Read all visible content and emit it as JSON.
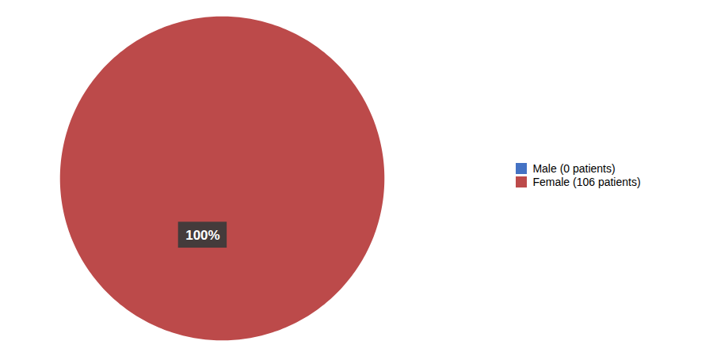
{
  "chart_data": {
    "type": "pie",
    "categories": [
      "Male (0 patients)",
      "Female (106 patients)"
    ],
    "values": [
      1e-06,
      100
    ],
    "colors": [
      "#4472c4",
      "#bc4a4a"
    ],
    "annotations": [
      "100%"
    ],
    "legend": "right"
  }
}
